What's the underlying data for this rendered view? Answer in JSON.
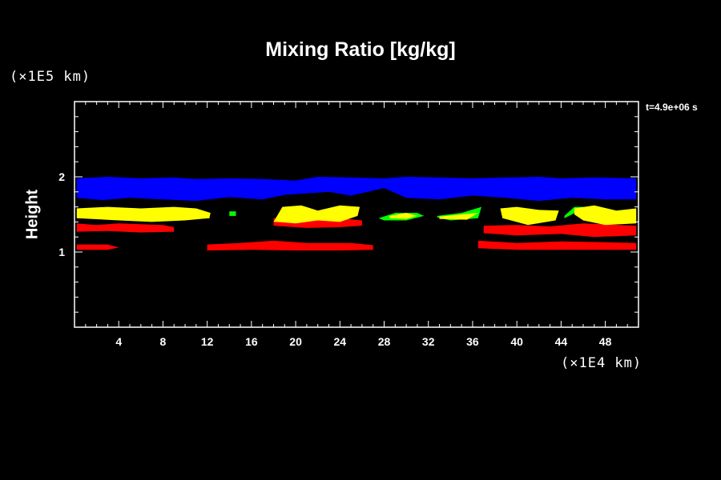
{
  "chart_data": {
    "type": "heatmap",
    "title": "Mixing Ratio [kg/kg]",
    "ylabel": "Height",
    "yunit": "(×1E5 km)",
    "xunit": "(×1E4 km)",
    "time_label": "t=4.9e+06 s",
    "xlim": [
      0,
      51
    ],
    "ylim": [
      0,
      3
    ],
    "xticks": [
      4,
      8,
      12,
      16,
      20,
      24,
      28,
      32,
      36,
      40,
      44,
      48
    ],
    "yticks": [
      1,
      2
    ],
    "colors": {
      "blue": "#0000ff",
      "yellow": "#ffff00",
      "green": "#00ff00",
      "red": "#ff0000",
      "background": "#000000",
      "axes": "#ffffff"
    },
    "regions": [
      {
        "name": "blue-layer",
        "color": "#0000ff",
        "x": [
          0.2,
          3,
          6,
          9,
          11,
          14,
          17,
          20,
          22,
          25,
          28,
          30,
          33,
          36,
          39,
          42,
          44,
          47,
          50.8,
          50.8,
          48,
          45,
          42,
          39,
          36,
          33,
          30,
          28,
          25,
          23,
          21,
          19,
          17,
          14,
          11,
          8,
          5,
          2.5,
          0.2
        ],
        "y": [
          1.98,
          2.0,
          1.98,
          1.99,
          1.97,
          1.98,
          1.97,
          1.95,
          2.0,
          1.99,
          1.98,
          2.0,
          1.99,
          1.98,
          1.99,
          2.0,
          1.98,
          1.99,
          1.98,
          1.7,
          1.7,
          1.72,
          1.68,
          1.72,
          1.75,
          1.7,
          1.72,
          1.85,
          1.75,
          1.8,
          1.78,
          1.76,
          1.7,
          1.73,
          1.68,
          1.7,
          1.72,
          1.69,
          1.72
        ]
      },
      {
        "name": "red-lower-left",
        "color": "#ff0000",
        "x": [
          0.2,
          2,
          4,
          6,
          8,
          9,
          9,
          6,
          3,
          0.2
        ],
        "y": [
          1.38,
          1.36,
          1.38,
          1.37,
          1.36,
          1.33,
          1.27,
          1.26,
          1.28,
          1.27
        ]
      },
      {
        "name": "yellow-left",
        "color": "#ffff00",
        "x": [
          0.2,
          3,
          6,
          9,
          11,
          12.3,
          12.2,
          10,
          7,
          4,
          0.2
        ],
        "y": [
          1.58,
          1.6,
          1.58,
          1.6,
          1.58,
          1.52,
          1.45,
          1.42,
          1.4,
          1.42,
          1.45
        ]
      },
      {
        "name": "red-base-left",
        "color": "#ff0000",
        "x": [
          0.2,
          3,
          4,
          3,
          0.2
        ],
        "y": [
          1.1,
          1.1,
          1.06,
          1.03,
          1.03
        ]
      },
      {
        "name": "red-base-long",
        "color": "#ff0000",
        "x": [
          12,
          15,
          18,
          21,
          25,
          27,
          27,
          24,
          20,
          16,
          12
        ],
        "y": [
          1.1,
          1.12,
          1.15,
          1.12,
          1.12,
          1.09,
          1.03,
          1.02,
          1.02,
          1.03,
          1.02
        ]
      },
      {
        "name": "red-mid",
        "color": "#ff0000",
        "x": [
          18,
          20,
          22,
          24,
          26,
          26,
          24,
          21,
          18
        ],
        "y": [
          1.45,
          1.48,
          1.46,
          1.45,
          1.42,
          1.35,
          1.33,
          1.32,
          1.35
        ]
      },
      {
        "name": "yellow-mid",
        "color": "#ffff00",
        "x": [
          18,
          18.8,
          20.5,
          22,
          24,
          25.8,
          25.6,
          24,
          22,
          20,
          18.3
        ],
        "y": [
          1.4,
          1.6,
          1.62,
          1.55,
          1.62,
          1.6,
          1.48,
          1.4,
          1.42,
          1.38,
          1.4
        ]
      },
      {
        "name": "green-mid",
        "color": "#00ff00",
        "x": [
          27.5,
          29,
          31,
          31.6,
          30,
          28,
          27.5
        ],
        "y": [
          1.45,
          1.52,
          1.52,
          1.48,
          1.42,
          1.42,
          1.45
        ]
      },
      {
        "name": "yellow-mid-small",
        "color": "#ffff00",
        "x": [
          28.5,
          30,
          31,
          30,
          28.5
        ],
        "y": [
          1.48,
          1.52,
          1.48,
          1.44,
          1.45
        ]
      },
      {
        "name": "green-right-small",
        "color": "#00ff00",
        "x": [
          32.8,
          35,
          36.8,
          36.5,
          34,
          32.8
        ],
        "y": [
          1.48,
          1.52,
          1.6,
          1.45,
          1.42,
          1.46
        ]
      },
      {
        "name": "yellow-right-small",
        "color": "#ffff00",
        "x": [
          33,
          35,
          36.5,
          35.5,
          33
        ],
        "y": [
          1.47,
          1.5,
          1.52,
          1.43,
          1.44
        ]
      },
      {
        "name": "red-right",
        "color": "#ff0000",
        "x": [
          37,
          40,
          43,
          46,
          50.8,
          50.8,
          47,
          44,
          40,
          37
        ],
        "y": [
          1.35,
          1.36,
          1.34,
          1.38,
          1.35,
          1.22,
          1.2,
          1.24,
          1.22,
          1.25
        ]
      },
      {
        "name": "red-base-right",
        "color": "#ff0000",
        "x": [
          36.5,
          40,
          44,
          48,
          50.8,
          50.8,
          46,
          40,
          36.5
        ],
        "y": [
          1.15,
          1.12,
          1.14,
          1.13,
          1.12,
          1.03,
          1.03,
          1.03,
          1.05
        ]
      },
      {
        "name": "yellow-right-1",
        "color": "#ffff00",
        "x": [
          38.5,
          40,
          42,
          43.8,
          43.5,
          41,
          38.7
        ],
        "y": [
          1.58,
          1.6,
          1.56,
          1.55,
          1.42,
          1.36,
          1.45
        ]
      },
      {
        "name": "green-right",
        "color": "#00ff00",
        "x": [
          44.3,
          45.2,
          46,
          45,
          44.3
        ],
        "y": [
          1.48,
          1.6,
          1.6,
          1.5,
          1.45
        ]
      },
      {
        "name": "yellow-right-2",
        "color": "#ffff00",
        "x": [
          45.2,
          47,
          49,
          50.8,
          50.8,
          48,
          46,
          45.2
        ],
        "y": [
          1.58,
          1.62,
          1.55,
          1.58,
          1.38,
          1.36,
          1.42,
          1.5
        ]
      },
      {
        "name": "green-dot",
        "color": "#00ff00",
        "x": [
          14,
          14.6,
          14.6,
          14
        ],
        "y": [
          1.54,
          1.54,
          1.48,
          1.48
        ]
      }
    ]
  }
}
